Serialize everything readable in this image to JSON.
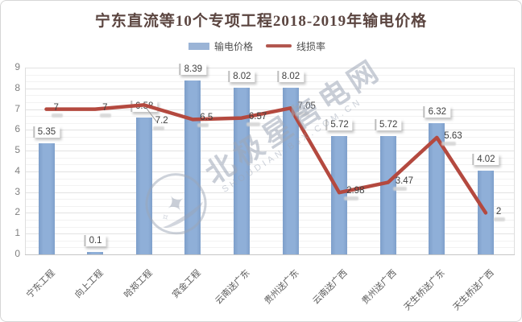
{
  "title": {
    "text": "宁东直流等10个专项工程2018-2019年输电价格",
    "color": "#5b4540"
  },
  "legend": {
    "items": [
      {
        "label": "输电价格",
        "marker": "bar",
        "color": "#9bb4d6"
      },
      {
        "label": "线损率",
        "marker": "line",
        "color": "#b2574f"
      }
    ]
  },
  "watermark": {
    "brand": "北极星售电网",
    "url": "SHOUDIAN.BJX.COM.CN",
    "star_icon": "✦",
    "small_star_icon": "✧"
  },
  "chart_data": {
    "type": "bar",
    "combo": "bar+line",
    "title": "宁东直流等10个专项工程2018-2019年输电价格",
    "categories": [
      "宁东工程",
      "向上工程",
      "哈郑工程",
      "宾金工程",
      "云南送广东",
      "贵州送广东",
      "云南送广西",
      "贵州送广西",
      "天生桥送广东",
      "天生桥送广西"
    ],
    "series": [
      {
        "name": "输电价格",
        "type": "bar",
        "color": "#8fafd8",
        "values": [
          5.35,
          0.1,
          6.58,
          8.39,
          8.02,
          8.02,
          5.72,
          5.72,
          6.32,
          4.02
        ],
        "labels": [
          "5.35",
          "0.1",
          "6.58",
          "8.39",
          "8.02",
          "8.02",
          "5.72",
          "5.72",
          "6.32",
          "4.02"
        ]
      },
      {
        "name": "线损率",
        "type": "line",
        "color": "#b4493f",
        "values": [
          7,
          7,
          7.2,
          6.5,
          6.57,
          7.05,
          2.98,
          3.47,
          5.63,
          2
        ],
        "labels": [
          "7",
          "7",
          "7.2",
          "6.5",
          "6.57",
          "7.05",
          "2.98",
          "3.47",
          "5.63",
          "2"
        ]
      }
    ],
    "xlabel": "",
    "ylabel": "",
    "ylim": [
      0,
      9
    ],
    "yticks": [
      "0",
      "1",
      "2",
      "3",
      "4",
      "5",
      "6",
      "7",
      "8",
      "9"
    ],
    "grid": "horizontal major + minor (1/3 unit)",
    "legend_position": "top-center",
    "x_tick_rotation": -45
  }
}
